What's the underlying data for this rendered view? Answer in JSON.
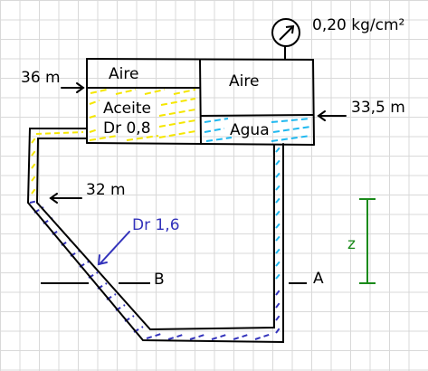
{
  "pressure_gauge": {
    "reading": "0,20 kg/cm²"
  },
  "tank_left": {
    "top_label": "Aire",
    "fluid_name": "Aceite",
    "fluid_density": "Dr 0,8",
    "surface_elevation": "36 m"
  },
  "tank_right": {
    "top_label": "Aire",
    "fluid_name": "Agua",
    "surface_elevation": "33,5 m"
  },
  "manometer": {
    "interface_elevation": "32 m",
    "fluid_density": "Dr 1,6",
    "point_left": "B",
    "point_right": "A",
    "height_label": "z"
  },
  "colors": {
    "oil": "#f5e600",
    "water": "#1fb8f0",
    "manometer_fluid": "#3333bb",
    "height_marker": "#1a8a1a",
    "outline": "#000000"
  }
}
